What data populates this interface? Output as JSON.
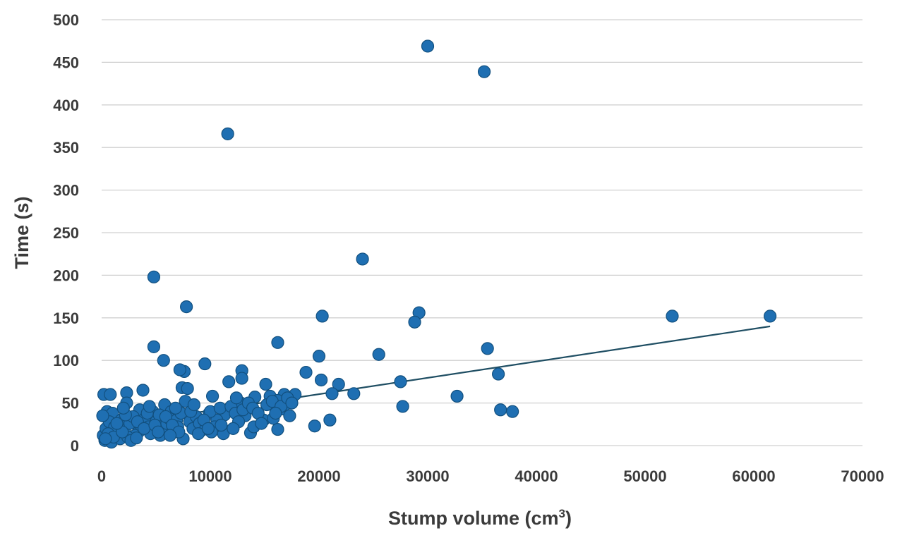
{
  "chart_data": {
    "type": "scatter",
    "xlabel": "Stump volume (cm",
    "xlabel_superscript": "3",
    "xlabel_suffix": ")",
    "ylabel": "Time (s)",
    "xlim": [
      0,
      70000
    ],
    "ylim": [
      0,
      500
    ],
    "x_ticks": [
      "0",
      "10000",
      "20000",
      "30000",
      "40000",
      "50000",
      "60000",
      "70000"
    ],
    "y_ticks": [
      "0",
      "50",
      "100",
      "150",
      "200",
      "250",
      "300",
      "350",
      "400",
      "450",
      "500"
    ],
    "grid": "horizontal",
    "legend": "none",
    "colors": {
      "marker": "#1f6fb2",
      "marker_edge": "#12507f",
      "trendline": "#1f4e63",
      "grid": "#d0d0d0"
    },
    "trendline": {
      "x": [
        500,
        61500
      ],
      "y": [
        23,
        140
      ]
    },
    "points": [
      [
        30000,
        469
      ],
      [
        35200,
        439
      ],
      [
        11600,
        366
      ],
      [
        24000,
        219
      ],
      [
        4800,
        198
      ],
      [
        7800,
        163
      ],
      [
        29200,
        156
      ],
      [
        28800,
        145
      ],
      [
        20300,
        152
      ],
      [
        52500,
        152
      ],
      [
        61500,
        152
      ],
      [
        16200,
        121
      ],
      [
        4800,
        116
      ],
      [
        35500,
        114
      ],
      [
        25500,
        107
      ],
      [
        20000,
        105
      ],
      [
        5700,
        100
      ],
      [
        9500,
        96
      ],
      [
        7600,
        87
      ],
      [
        7200,
        89
      ],
      [
        12900,
        88
      ],
      [
        18800,
        86
      ],
      [
        36500,
        84
      ],
      [
        12900,
        79
      ],
      [
        11700,
        75
      ],
      [
        27500,
        75
      ],
      [
        20200,
        77
      ],
      [
        15100,
        72
      ],
      [
        21800,
        72
      ],
      [
        7400,
        68
      ],
      [
        7900,
        67
      ],
      [
        3800,
        65
      ],
      [
        2300,
        62
      ],
      [
        200,
        60
      ],
      [
        800,
        60
      ],
      [
        10200,
        58
      ],
      [
        16800,
        60
      ],
      [
        17800,
        60
      ],
      [
        21200,
        61
      ],
      [
        23200,
        61
      ],
      [
        32700,
        58
      ],
      [
        14100,
        57
      ],
      [
        15500,
        58
      ],
      [
        16200,
        53
      ],
      [
        7700,
        52
      ],
      [
        2300,
        50
      ],
      [
        5800,
        48
      ],
      [
        12800,
        50
      ],
      [
        27700,
        46
      ],
      [
        36700,
        42
      ],
      [
        37800,
        40
      ],
      [
        16700,
        43
      ],
      [
        500,
        40
      ],
      [
        1000,
        38
      ],
      [
        3500,
        42
      ],
      [
        4700,
        40
      ],
      [
        6400,
        40
      ],
      [
        9900,
        38
      ],
      [
        11300,
        36
      ],
      [
        13200,
        35
      ],
      [
        17300,
        35
      ],
      [
        10600,
        30
      ],
      [
        14900,
        30
      ],
      [
        21000,
        30
      ],
      [
        19600,
        23
      ],
      [
        16200,
        19
      ],
      [
        13700,
        15
      ],
      [
        11200,
        14
      ],
      [
        9200,
        18
      ],
      [
        7500,
        8
      ],
      [
        5400,
        12
      ],
      [
        3400,
        16
      ],
      [
        1500,
        13
      ],
      [
        300,
        6
      ],
      [
        900,
        4
      ],
      [
        150,
        12
      ],
      [
        400,
        20
      ],
      [
        700,
        28
      ],
      [
        1200,
        22
      ],
      [
        1800,
        30
      ],
      [
        2100,
        18
      ],
      [
        2600,
        26
      ],
      [
        2900,
        34
      ],
      [
        3100,
        12
      ],
      [
        3600,
        24
      ],
      [
        4000,
        32
      ],
      [
        4300,
        22
      ],
      [
        4500,
        14
      ],
      [
        5000,
        28
      ],
      [
        5300,
        36
      ],
      [
        5600,
        20
      ],
      [
        6000,
        26
      ],
      [
        6200,
        32
      ],
      [
        6600,
        18
      ],
      [
        6900,
        30
      ],
      [
        7000,
        22
      ],
      [
        7300,
        38
      ],
      [
        8100,
        28
      ],
      [
        8400,
        20
      ],
      [
        8700,
        34
      ],
      [
        9000,
        26
      ],
      [
        9600,
        22
      ],
      [
        10000,
        40
      ],
      [
        10400,
        22
      ],
      [
        10900,
        44
      ],
      [
        11900,
        46
      ],
      [
        12300,
        38
      ],
      [
        12600,
        28
      ],
      [
        13000,
        42
      ],
      [
        13500,
        50
      ],
      [
        13900,
        44
      ],
      [
        14400,
        38
      ],
      [
        15200,
        48
      ],
      [
        15700,
        52
      ],
      [
        16500,
        46
      ],
      [
        17100,
        56
      ],
      [
        17500,
        50
      ],
      [
        1700,
        8
      ],
      [
        2400,
        10
      ],
      [
        2700,
        6
      ],
      [
        3200,
        9
      ],
      [
        600,
        14
      ],
      [
        1100,
        10
      ],
      [
        1900,
        16
      ],
      [
        2200,
        36
      ],
      [
        3300,
        28
      ],
      [
        3900,
        20
      ],
      [
        4200,
        38
      ],
      [
        4900,
        24
      ],
      [
        5200,
        16
      ],
      [
        5900,
        34
      ],
      [
        6500,
        24
      ],
      [
        6800,
        44
      ],
      [
        7100,
        16
      ],
      [
        8200,
        40
      ],
      [
        8900,
        14
      ],
      [
        9400,
        30
      ],
      [
        10100,
        16
      ],
      [
        11000,
        24
      ],
      [
        12100,
        20
      ],
      [
        14000,
        22
      ],
      [
        14700,
        26
      ],
      [
        15800,
        32
      ],
      [
        100,
        35
      ],
      [
        350,
        8
      ],
      [
        1400,
        26
      ],
      [
        2000,
        44
      ],
      [
        4400,
        46
      ],
      [
        6300,
        12
      ],
      [
        8500,
        48
      ],
      [
        9800,
        20
      ],
      [
        12400,
        56
      ],
      [
        16000,
        38
      ]
    ]
  }
}
